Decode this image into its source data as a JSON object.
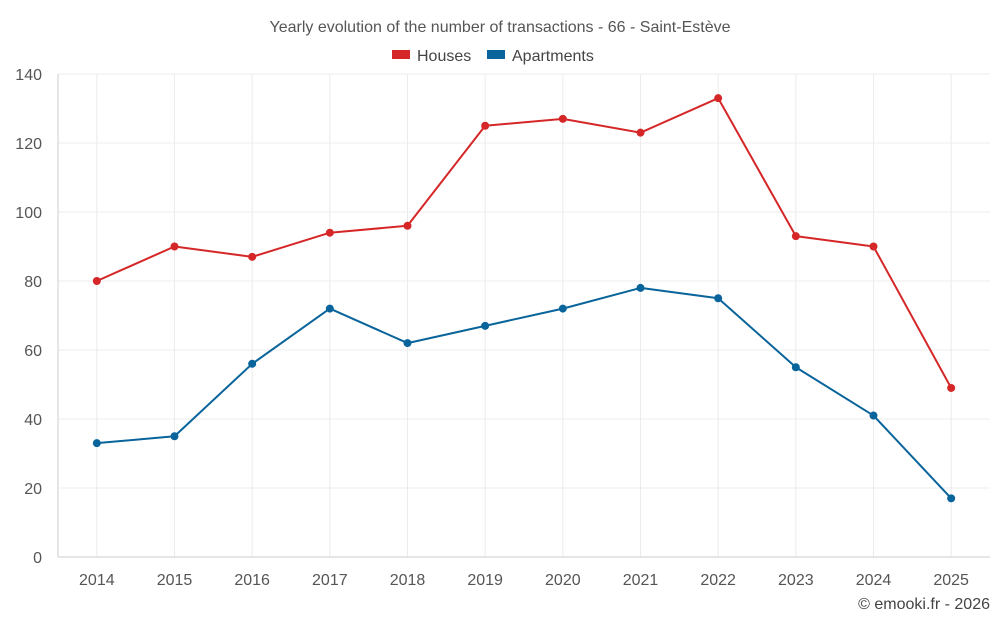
{
  "chart_data": {
    "type": "line",
    "title": "Yearly evolution of the number of transactions - 66 - Saint-Estève",
    "xlabel": "",
    "ylabel": "",
    "ylim": [
      0,
      140
    ],
    "yticks": [
      0,
      20,
      40,
      60,
      80,
      100,
      120,
      140
    ],
    "grid": true,
    "legend_position": "top-center",
    "categories": [
      "2014",
      "2015",
      "2016",
      "2017",
      "2018",
      "2019",
      "2020",
      "2021",
      "2022",
      "2023",
      "2024",
      "2025"
    ],
    "series": [
      {
        "name": "Houses",
        "color": "#d62728",
        "values": [
          80,
          90,
          87,
          94,
          96,
          125,
          127,
          123,
          133,
          93,
          90,
          49
        ]
      },
      {
        "name": "Apartments",
        "color": "#08649a",
        "values": [
          33,
          35,
          56,
          72,
          62,
          67,
          72,
          78,
          75,
          55,
          41,
          17
        ]
      }
    ]
  },
  "credit": "© emooki.fr - 2026"
}
